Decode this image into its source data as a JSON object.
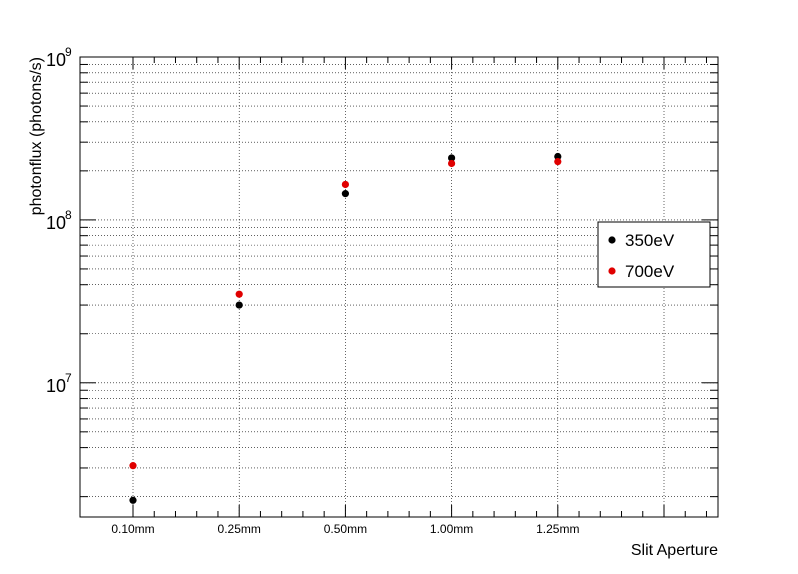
{
  "chart_data": {
    "type": "scatter",
    "title": "",
    "xlabel": "Slit Aperture",
    "ylabel": "photonflux (photons/s)",
    "yscale": "log",
    "ylim": [
      1500000,
      1000000000
    ],
    "y_tick_labels": [
      {
        "base": "10",
        "exp": "7",
        "value": 10000000
      },
      {
        "base": "10",
        "exp": "8",
        "value": 100000000
      },
      {
        "base": "10",
        "exp": "9",
        "value": 1000000000
      }
    ],
    "categories": [
      "0.10mm",
      "0.25mm",
      "0.50mm",
      "1.00mm",
      "1.25mm"
    ],
    "grid": true,
    "legend_position": "right",
    "series": [
      {
        "name": "350eV",
        "color": "#000000",
        "values": [
          1900000,
          30000000,
          145000000,
          240000000,
          245000000
        ]
      },
      {
        "name": "700eV",
        "color": "#e00000",
        "values": [
          3100000,
          35000000,
          165000000,
          222000000,
          228000000
        ]
      }
    ]
  }
}
